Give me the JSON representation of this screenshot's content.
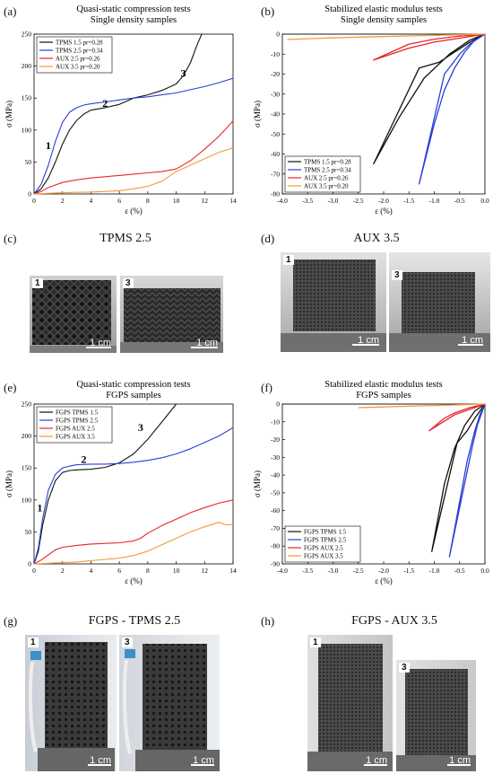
{
  "panels": {
    "a": "(a)",
    "b": "(b)",
    "c": "(c)",
    "d": "(d)",
    "e": "(e)",
    "f": "(f)",
    "g": "(g)",
    "h": "(h)"
  },
  "captions": {
    "c": "TPMS 2.5",
    "d": "AUX 3.5",
    "g": "FGPS - TPMS 2.5",
    "h": "FGPS - AUX 3.5"
  },
  "photos": {
    "c1": {
      "index": "1",
      "scale": "1 cm"
    },
    "c3": {
      "index": "3",
      "scale": "1 cm"
    },
    "d1": {
      "index": "1",
      "scale": "1 cm"
    },
    "d3": {
      "index": "3",
      "scale": "1 cm"
    },
    "g1": {
      "index": "1",
      "scale": "1 cm"
    },
    "g3": {
      "index": "3",
      "scale": "1 cm"
    },
    "h1": {
      "index": "1",
      "scale": "1 cm"
    },
    "h3": {
      "index": "3",
      "scale": "1 cm"
    }
  },
  "colors": {
    "tpms15": "#111111",
    "tpms25": "#2a3fd6",
    "aux25": "#e8262a",
    "aux35": "#f39a3a"
  },
  "chart_data": [
    {
      "id": "a",
      "type": "line",
      "title": "Quasi-static compression tests",
      "subtitle": "Single density samples",
      "xlabel": "ε (%)",
      "ylabel": "σ (MPa)",
      "xlim": [
        0,
        14
      ],
      "ylim": [
        0,
        250
      ],
      "xticks": [
        0,
        2,
        4,
        6,
        8,
        10,
        12,
        14
      ],
      "yticks": [
        0,
        50,
        100,
        150,
        200,
        250
      ],
      "legend": "top-left",
      "series": [
        {
          "name": "TPMS 1.5 pr=0.28",
          "color": "#111111",
          "x": [
            0,
            0.5,
            1,
            1.5,
            2,
            2.5,
            3,
            3.5,
            4,
            5,
            6,
            7,
            8,
            9,
            10,
            10.5,
            11,
            11.5,
            11.8
          ],
          "y": [
            0,
            8,
            25,
            50,
            78,
            100,
            115,
            125,
            131,
            135,
            140,
            150,
            155,
            162,
            172,
            185,
            205,
            235,
            250
          ]
        },
        {
          "name": "TPMS 2.5 pr=0.34",
          "color": "#2a3fd6",
          "x": [
            0,
            0.5,
            1,
            1.5,
            2,
            2.5,
            3,
            3.5,
            4,
            5,
            6,
            7,
            8,
            9,
            10,
            11,
            12,
            13,
            14
          ],
          "y": [
            0,
            15,
            45,
            82,
            112,
            128,
            135,
            139,
            141,
            144,
            147,
            150,
            152,
            155,
            158,
            163,
            168,
            174,
            181
          ]
        },
        {
          "name": "AUX 2.5 pr=0.26",
          "color": "#e8262a",
          "x": [
            0,
            0.5,
            1,
            2,
            3,
            4,
            5,
            6,
            7,
            8,
            9,
            10,
            11,
            12,
            13,
            14
          ],
          "y": [
            0,
            4,
            10,
            18,
            22,
            25,
            27,
            29,
            31,
            33,
            35,
            39,
            52,
            70,
            90,
            114
          ]
        },
        {
          "name": "AUX 3.5 pr=0.20",
          "color": "#f39a3a",
          "x": [
            0,
            1,
            2,
            3,
            4,
            5,
            6,
            7,
            8,
            9,
            10,
            11,
            12,
            13,
            14
          ],
          "y": [
            0,
            1,
            2,
            2.5,
            3,
            4,
            5,
            8,
            12,
            20,
            35,
            45,
            55,
            65,
            72
          ]
        }
      ],
      "annotations": [
        {
          "text": "1",
          "x": 1.0,
          "y": 70
        },
        {
          "text": "2",
          "x": 5.0,
          "y": 136
        },
        {
          "text": "3",
          "x": 10.5,
          "y": 183
        }
      ]
    },
    {
      "id": "b",
      "type": "line",
      "title": "Stabilized elastic modulus tests",
      "subtitle": "Single density samples",
      "xlabel": "ε (%)",
      "ylabel": "σ (MPa)",
      "xlim": [
        -4.0,
        0.0
      ],
      "ylim": [
        -80,
        0
      ],
      "xticks": [
        -4.0,
        -3.5,
        -3.0,
        -2.5,
        -2.0,
        -1.5,
        -1.0,
        -0.5,
        0.0
      ],
      "yticks": [
        0,
        -10,
        -20,
        -30,
        -40,
        -50,
        -60,
        -70,
        -80
      ],
      "legend": "bottom-left",
      "series": [
        {
          "name": "TPMS 1.5 pr=0.28",
          "color": "#111111",
          "x": [
            0,
            -0.3,
            -0.7,
            -1.2,
            -1.7,
            -2.2,
            -1.3,
            -0.9,
            -0.6,
            -0.3,
            0
          ],
          "y": [
            0,
            -3,
            -10,
            -22,
            -42,
            -65,
            -17,
            -14,
            -9,
            -4,
            0
          ]
        },
        {
          "name": "TPMS 2.5 pr=0.34",
          "color": "#2a3fd6",
          "x": [
            0,
            -0.2,
            -0.4,
            -0.6,
            -0.8,
            -1.0,
            -1.3,
            -0.8,
            -0.5,
            -0.3,
            0
          ],
          "y": [
            0,
            -3,
            -9,
            -17,
            -28,
            -45,
            -75,
            -20,
            -10,
            -5,
            0
          ]
        },
        {
          "name": "AUX 2.5 pr=0.26",
          "color": "#e8262a",
          "x": [
            0,
            -0.5,
            -1.0,
            -1.5,
            -2.2,
            -1.5,
            -1.0,
            -0.5,
            0
          ],
          "y": [
            0,
            -1,
            -2.5,
            -5,
            -13,
            -7,
            -4,
            -2,
            0
          ]
        },
        {
          "name": "AUX 3.5 pr=0.20",
          "color": "#f39a3a",
          "x": [
            0,
            -0.5,
            -1.0,
            -1.5,
            -2.0,
            -2.5,
            -3.0,
            -3.5,
            -3.9
          ],
          "y": [
            0,
            -0.3,
            -0.6,
            -0.9,
            -1.2,
            -1.5,
            -1.9,
            -2.3,
            -2.7
          ]
        }
      ]
    },
    {
      "id": "e",
      "type": "line",
      "title": "Quasi-static compression tests",
      "subtitle": "FGPS samples",
      "xlabel": "ε (%)",
      "ylabel": "σ (MPa)",
      "xlim": [
        0,
        14
      ],
      "ylim": [
        0,
        250
      ],
      "xticks": [
        0,
        2,
        4,
        6,
        8,
        10,
        12,
        14
      ],
      "yticks": [
        0,
        50,
        100,
        150,
        200,
        250
      ],
      "legend": "top-left",
      "series": [
        {
          "name": "FGPS TPMS 1.5",
          "color": "#111111",
          "x": [
            0,
            0.3,
            0.6,
            1,
            1.5,
            2,
            2.5,
            3,
            4,
            5,
            6,
            7,
            8,
            9,
            10
          ],
          "y": [
            0,
            20,
            60,
            100,
            130,
            143,
            146,
            147,
            148,
            151,
            158,
            172,
            195,
            222,
            250
          ]
        },
        {
          "name": "FGPS TPMS 2.5",
          "color": "#2a3fd6",
          "x": [
            0,
            0.3,
            0.6,
            1,
            1.5,
            2,
            2.5,
            3,
            4,
            5,
            6,
            7,
            8,
            9,
            10,
            11,
            12,
            13,
            14
          ],
          "y": [
            0,
            25,
            70,
            115,
            140,
            150,
            153,
            155,
            156,
            156,
            157,
            159,
            162,
            166,
            172,
            180,
            190,
            200,
            213
          ]
        },
        {
          "name": "FGPS AUX 2.5",
          "color": "#e8262a",
          "x": [
            0,
            0.5,
            1,
            1.5,
            2,
            3,
            4,
            5,
            6,
            7,
            7.5,
            8,
            9,
            10,
            11,
            12,
            13,
            14
          ],
          "y": [
            0,
            6,
            14,
            22,
            26,
            29,
            31,
            32,
            33,
            36,
            40,
            48,
            60,
            70,
            80,
            88,
            95,
            100
          ]
        },
        {
          "name": "FGPS AUX 3.5",
          "color": "#f39a3a",
          "x": [
            0,
            1,
            2,
            3,
            4,
            5,
            6,
            7,
            8,
            9,
            10,
            11,
            12,
            13,
            13.5,
            14
          ],
          "y": [
            0,
            1,
            2,
            3,
            5,
            7,
            9,
            13,
            20,
            30,
            40,
            50,
            58,
            65,
            61,
            62
          ]
        }
      ],
      "annotations": [
        {
          "text": "1",
          "x": 0.4,
          "y": 82
        },
        {
          "text": "2",
          "x": 3.5,
          "y": 158
        },
        {
          "text": "3",
          "x": 7.5,
          "y": 208
        }
      ]
    },
    {
      "id": "f",
      "type": "line",
      "title": "Stabilized elastic modulus tests",
      "subtitle": "FGPS samples",
      "xlabel": "ε (%)",
      "ylabel": "σ (MPa)",
      "xlim": [
        -4.0,
        0.0
      ],
      "ylim": [
        -90,
        0
      ],
      "xticks": [
        -4.0,
        -3.5,
        -3.0,
        -2.5,
        -2.0,
        -1.5,
        -1.0,
        -0.5,
        0.0
      ],
      "yticks": [
        0,
        -10,
        -20,
        -30,
        -40,
        -50,
        -60,
        -70,
        -80,
        -90
      ],
      "legend": "bottom-left",
      "series": [
        {
          "name": "FGPS TPMS 1.5",
          "color": "#111111",
          "x": [
            0,
            -0.2,
            -0.4,
            -0.6,
            -0.8,
            -1.05,
            -0.55,
            -0.35,
            -0.2,
            0
          ],
          "y": [
            0,
            -4,
            -12,
            -25,
            -45,
            -83,
            -22,
            -15,
            -8,
            0
          ]
        },
        {
          "name": "FGPS TPMS 2.5",
          "color": "#2a3fd6",
          "x": [
            0,
            -0.1,
            -0.2,
            -0.35,
            -0.5,
            -0.7,
            -0.25,
            -0.15,
            0
          ],
          "y": [
            0,
            -6,
            -15,
            -32,
            -55,
            -86,
            -24,
            -12,
            0
          ]
        },
        {
          "name": "FGPS AUX 2.5",
          "color": "#e8262a",
          "x": [
            0,
            -0.3,
            -0.6,
            -0.8,
            -1.1,
            -0.6,
            -0.3,
            0
          ],
          "y": [
            0,
            -2,
            -5,
            -8,
            -15,
            -6,
            -3,
            0
          ]
        },
        {
          "name": "FGPS AUX 3.5",
          "color": "#f39a3a",
          "x": [
            0,
            -0.5,
            -1.0,
            -1.5,
            -2.0,
            -2.5
          ],
          "y": [
            0,
            -0.4,
            -0.8,
            -1.2,
            -1.6,
            -2.0
          ]
        }
      ]
    }
  ]
}
